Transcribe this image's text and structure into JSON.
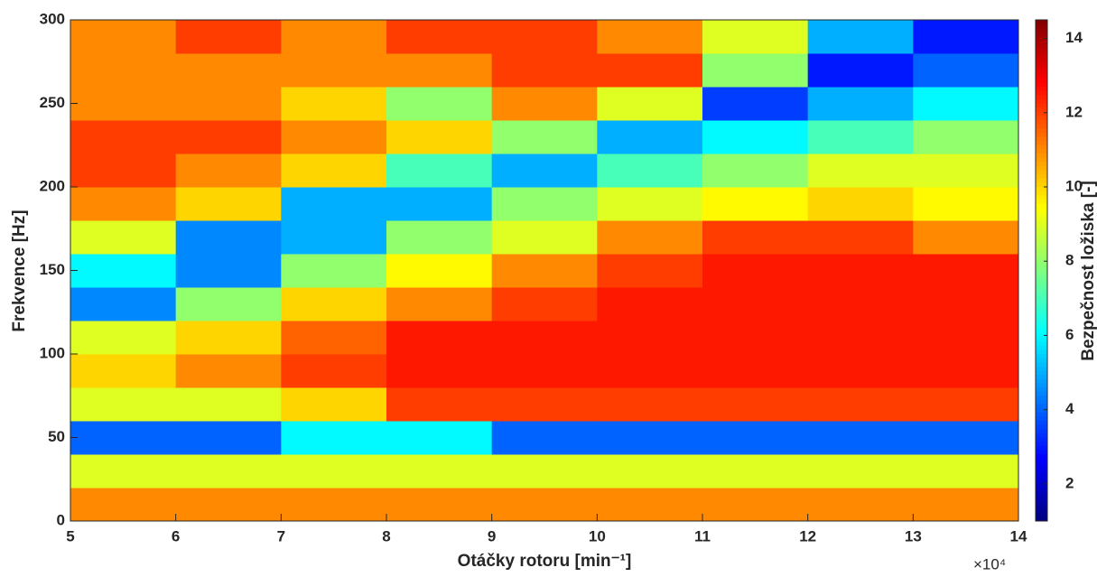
{
  "chart_data": {
    "type": "heatmap",
    "xlabel": "Otáčky rotoru [min⁻¹]",
    "x_multiplier": "×10⁴",
    "ylabel": "Frekvence [Hz]",
    "colorbar_label": "Bezpečnost ložiska [-]",
    "colormap": "jet",
    "xlim": [
      5,
      14
    ],
    "xticks": [
      5,
      6,
      7,
      8,
      9,
      10,
      11,
      12,
      13,
      14
    ],
    "ylim": [
      0,
      300
    ],
    "yticks": [
      0,
      50,
      100,
      150,
      200,
      250,
      300
    ],
    "clim": [
      1,
      14.5
    ],
    "cticks": [
      2,
      4,
      6,
      8,
      10,
      12,
      14
    ],
    "x": [
      5.5,
      6.5,
      7.5,
      8.5,
      9.5,
      10.5,
      11.5,
      12.5,
      13.5
    ],
    "y": [
      10,
      30,
      50,
      70,
      90,
      110,
      130,
      150,
      170,
      190,
      210,
      230,
      250,
      270,
      290
    ],
    "z": [
      [
        11,
        11,
        11,
        11,
        11,
        11,
        11,
        11,
        11
      ],
      [
        9,
        9,
        9,
        9,
        9,
        9,
        9,
        9,
        9
      ],
      [
        4,
        4,
        6,
        6,
        4,
        4,
        4,
        4,
        4
      ],
      [
        9,
        9,
        10,
        12,
        12,
        12,
        12,
        12,
        12
      ],
      [
        10,
        11,
        12,
        12.5,
        12.5,
        12.5,
        12.5,
        12.5,
        12.5
      ],
      [
        9,
        10,
        11.5,
        12.5,
        12.5,
        12.5,
        12.5,
        12.5,
        12.5
      ],
      [
        4.5,
        8,
        10,
        11,
        12,
        12.5,
        12.5,
        12.5,
        12.5
      ],
      [
        6,
        4.5,
        8,
        9.5,
        11,
        12,
        12.5,
        12.5,
        12.5
      ],
      [
        9,
        4.5,
        5,
        8,
        9,
        11,
        12,
        12,
        11
      ],
      [
        11,
        10,
        5,
        5,
        8,
        9,
        9.5,
        10,
        9.5
      ],
      [
        12,
        11,
        10,
        7,
        5,
        7,
        8,
        9,
        9
      ],
      [
        12,
        12,
        11,
        10,
        8,
        5,
        6,
        7,
        8
      ],
      [
        11,
        11,
        10,
        8,
        11,
        9,
        3.5,
        5,
        6
      ],
      [
        11,
        11,
        11,
        11,
        12,
        12,
        8,
        3,
        4
      ],
      [
        11,
        12,
        11,
        12,
        12,
        11,
        9,
        5,
        3
      ]
    ]
  }
}
